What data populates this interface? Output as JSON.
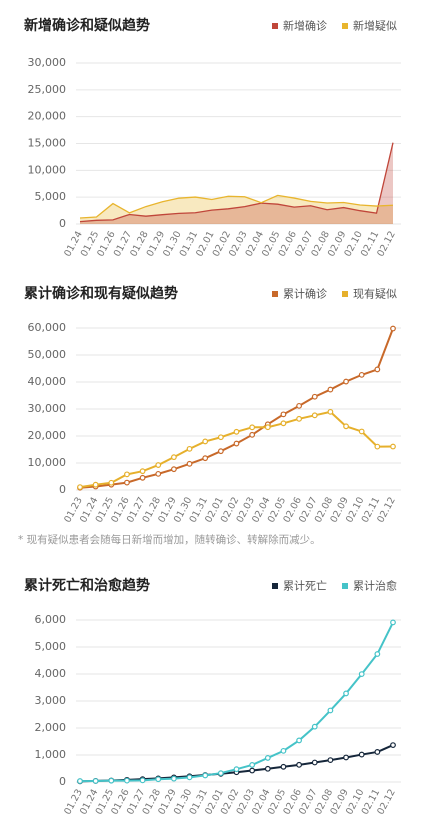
{
  "chart_data": [
    {
      "type": "area",
      "title": "新增确诊和疑似趋势",
      "categories": [
        "01.24",
        "01.25",
        "01.26",
        "01.27",
        "01.28",
        "01.29",
        "01.30",
        "01.31",
        "02.01",
        "02.02",
        "02.03",
        "02.04",
        "02.05",
        "02.06",
        "02.07",
        "02.08",
        "02.09",
        "02.10",
        "02.11",
        "02.12"
      ],
      "series": [
        {
          "name": "新增确诊",
          "color": "#c0463a",
          "values": [
            444,
            688,
            769,
            1771,
            1459,
            1737,
            1982,
            2102,
            2590,
            2829,
            3235,
            3887,
            3694,
            3143,
            3399,
            2656,
            3062,
            2478,
            2015,
            15152
          ]
        },
        {
          "name": "新增疑似",
          "color": "#e8b52e",
          "values": [
            1118,
            1309,
            3806,
            2077,
            3248,
            4148,
            4812,
            5019,
            4562,
            5173,
            5072,
            3971,
            5328,
            4833,
            4214,
            3916,
            4008,
            3536,
            3342,
            3500
          ]
        }
      ],
      "ylim": [
        0,
        30000
      ],
      "yticks": [
        0,
        {
          "value": 5000,
          "label": "5,000"
        },
        {
          "value": 10000,
          "label": "10,000"
        },
        {
          "value": 15000,
          "label": "15,000"
        },
        {
          "value": 20000,
          "label": "20,000"
        },
        {
          "value": 25000,
          "label": "25,000"
        },
        {
          "value": 30000,
          "label": "30,000"
        }
      ],
      "grid": true,
      "legend": "top-right"
    },
    {
      "type": "line",
      "title": "累计确诊和现有疑似趋势",
      "categories": [
        "01.23",
        "01.24",
        "01.25",
        "01.26",
        "01.27",
        "01.28",
        "01.29",
        "01.30",
        "01.31",
        "02.01",
        "02.02",
        "02.03",
        "02.04",
        "02.05",
        "02.06",
        "02.07",
        "02.08",
        "02.09",
        "02.10",
        "02.11",
        "02.12"
      ],
      "series": [
        {
          "name": "累计确诊",
          "color": "#c8692a",
          "values": [
            830,
            1287,
            1975,
            2744,
            4515,
            5974,
            7711,
            9692,
            11791,
            14380,
            17205,
            20438,
            24324,
            28018,
            31161,
            34546,
            37198,
            40171,
            42638,
            44653,
            59804
          ]
        },
        {
          "name": "现有疑似",
          "color": "#e6b02c",
          "values": [
            1072,
            1965,
            2684,
            5794,
            6973,
            9239,
            12167,
            15238,
            17988,
            19544,
            21558,
            23214,
            23260,
            24702,
            26359,
            27657,
            28942,
            23589,
            21675,
            16067,
            16100
          ]
        }
      ],
      "ylim": [
        0,
        60000
      ],
      "yticks": [
        0,
        {
          "value": 10000,
          "label": "10,000"
        },
        {
          "value": 20000,
          "label": "20,000"
        },
        {
          "value": 30000,
          "label": "30,000"
        },
        {
          "value": 40000,
          "label": "40,000"
        },
        {
          "value": 50000,
          "label": "50,000"
        },
        {
          "value": 60000,
          "label": "60,000"
        }
      ],
      "grid": true,
      "legend": "top-right",
      "annotation": "* 现有疑似患者会随每日新增而增加，随转确诊、转解除而减少。"
    },
    {
      "type": "line",
      "title": "累计死亡和治愈趋势",
      "categories": [
        "01.23",
        "01.24",
        "01.25",
        "01.26",
        "01.27",
        "01.28",
        "01.29",
        "01.30",
        "01.31",
        "02.01",
        "02.02",
        "02.03",
        "02.04",
        "02.05",
        "02.06",
        "02.07",
        "02.08",
        "02.09",
        "02.10",
        "02.11",
        "02.12"
      ],
      "series": [
        {
          "name": "累计死亡",
          "color": "#15263a",
          "values": [
            25,
            41,
            56,
            80,
            106,
            132,
            170,
            213,
            259,
            304,
            361,
            425,
            490,
            563,
            636,
            722,
            811,
            908,
            1016,
            1113,
            1367
          ]
        },
        {
          "name": "累计治愈",
          "color": "#45c3c8",
          "values": [
            34,
            38,
            49,
            51,
            60,
            103,
            124,
            171,
            243,
            328,
            475,
            632,
            892,
            1153,
            1540,
            2050,
            2649,
            3281,
            3996,
            4740,
            5911
          ]
        }
      ],
      "ylim": [
        0,
        6000
      ],
      "yticks": [
        0,
        {
          "value": 1000,
          "label": "1,000"
        },
        {
          "value": 2000,
          "label": "2,000"
        },
        {
          "value": 3000,
          "label": "3,000"
        },
        {
          "value": 4000,
          "label": "4,000"
        },
        {
          "value": 5000,
          "label": "5,000"
        },
        {
          "value": 6000,
          "label": "6,000"
        }
      ],
      "grid": true,
      "legend": "top-right"
    }
  ]
}
